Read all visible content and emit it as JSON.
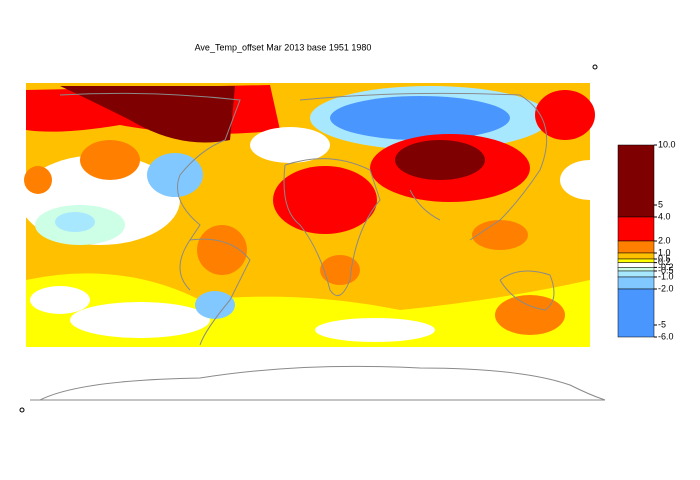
{
  "title": "Ave_Temp_offset Mar 2013  base 1951 1980",
  "legend": {
    "range": [
      -6,
      10
    ],
    "ticks": [
      {
        "value": 10,
        "label": "10.0"
      },
      5,
      {
        "value": 4,
        "label": "4.0"
      },
      {
        "value": 2,
        "label": "2.0"
      },
      {
        "value": 1,
        "label": "1.0"
      },
      0.5,
      0.2,
      -0.2,
      -0.5,
      {
        "value": -1,
        "label": "-1.0"
      },
      {
        "value": -2,
        "label": "-2.0"
      },
      -5,
      {
        "value": -6,
        "label": "-6.0"
      }
    ],
    "bands": [
      {
        "from": 4,
        "to": 10,
        "color": "#7f0000"
      },
      {
        "from": 2,
        "to": 4,
        "color": "#ff0000"
      },
      {
        "from": 1,
        "to": 2,
        "color": "#ff8000"
      },
      {
        "from": 0.5,
        "to": 1,
        "color": "#ffc000"
      },
      {
        "from": 0.2,
        "to": 0.5,
        "color": "#ffff00"
      },
      {
        "from": -0.2,
        "to": 0.2,
        "color": "#ffffff"
      },
      {
        "from": -0.5,
        "to": -0.2,
        "color": "#ccffe6"
      },
      {
        "from": -1,
        "to": -0.5,
        "color": "#a8e8ff"
      },
      {
        "from": -2,
        "to": -1,
        "color": "#80c8ff"
      },
      {
        "from": -6,
        "to": -2,
        "color": "#4a96ff"
      }
    ]
  }
}
